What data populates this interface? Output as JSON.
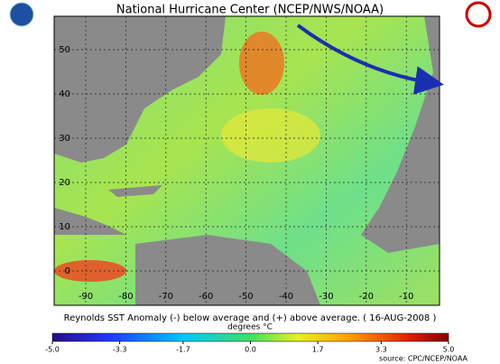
{
  "header": {
    "title": "National Hurricane Center (NCEP/NWS/NOAA)"
  },
  "map": {
    "lat_ticks": [
      0,
      10,
      20,
      30,
      40,
      50
    ],
    "lon_ticks": [
      -90,
      -80,
      -70,
      -60,
      -50,
      -40,
      -30,
      -20,
      -10
    ],
    "caption": "Reynolds SST Anomaly (-) below average and (+) above average. ( 16-AUG-2008 )",
    "units": "degrees °C"
  },
  "colorbar": {
    "lim": [
      -5,
      5
    ],
    "ticks": [
      {
        "value": -5,
        "label": "-5.0"
      },
      {
        "value": -3.3,
        "label": "-3.3"
      },
      {
        "value": -1.7,
        "label": "-1.7"
      },
      {
        "value": 0,
        "label": "0.0"
      },
      {
        "value": 1.7,
        "label": "1.7"
      },
      {
        "value": 3.3,
        "label": "3.3"
      },
      {
        "value": 5,
        "label": "5.0"
      }
    ]
  },
  "source": "source:  CPC/NCEP/NOAA"
}
